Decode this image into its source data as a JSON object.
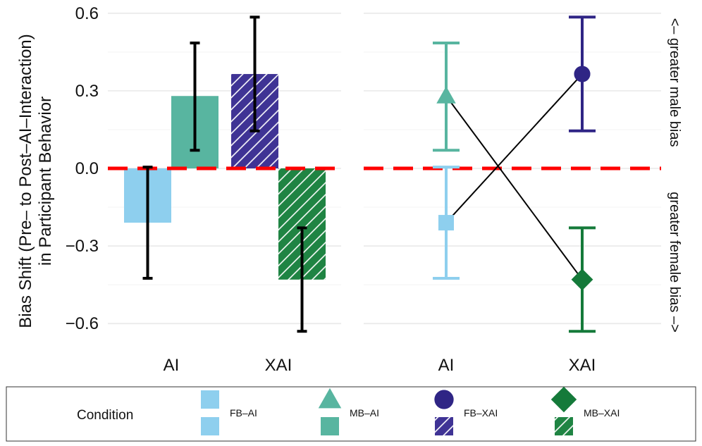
{
  "chart_data": [
    {
      "type": "bar",
      "panel": "left",
      "categories": [
        "AI",
        "XAI"
      ],
      "ylabel": [
        "Bias Shift (Pre– to Post–AI–Interaction)",
        "in Participant Behavior"
      ],
      "ylim": [
        -0.72,
        0.62
      ],
      "yticks": [
        0.6,
        0.3,
        0.0,
        -0.3,
        -0.6
      ],
      "ytick_labels": [
        "0.6",
        "0.3",
        "0.0",
        "−0.3",
        "−0.6"
      ],
      "reference_line": 0,
      "series": [
        {
          "name": "FB–AI",
          "category": "AI",
          "value": -0.21,
          "err_low": -0.425,
          "err_high": 0.005,
          "color": "#8ECFEE",
          "hatched": false
        },
        {
          "name": "MB–AI",
          "category": "AI",
          "value": 0.28,
          "err_low": 0.07,
          "err_high": 0.485,
          "color": "#58B5A0",
          "hatched": false
        },
        {
          "name": "FB–XAI",
          "category": "XAI",
          "value": 0.365,
          "err_low": 0.145,
          "err_high": 0.585,
          "color": "#3F3395",
          "hatched": true
        },
        {
          "name": "MB–XAI",
          "category": "XAI",
          "value": -0.43,
          "err_low": -0.63,
          "err_high": -0.23,
          "color": "#1F8443",
          "hatched": true
        }
      ]
    },
    {
      "type": "line",
      "panel": "right",
      "categories": [
        "AI",
        "XAI"
      ],
      "ylim": [
        -0.72,
        0.62
      ],
      "reference_line": 0,
      "series": [
        {
          "name": "FB–AI",
          "category": "AI",
          "value": -0.21,
          "err_low": -0.425,
          "err_high": 0.005,
          "color": "#8ECFEE",
          "marker": "square"
        },
        {
          "name": "MB–AI",
          "category": "AI",
          "value": 0.28,
          "err_low": 0.07,
          "err_high": 0.485,
          "color": "#58B5A0",
          "marker": "triangle"
        },
        {
          "name": "FB–XAI",
          "category": "XAI",
          "value": 0.365,
          "err_low": 0.145,
          "err_high": 0.585,
          "color": "#2F2585",
          "marker": "circle"
        },
        {
          "name": "MB–XAI",
          "category": "XAI",
          "value": -0.43,
          "err_low": -0.63,
          "err_high": -0.23,
          "color": "#157A3A",
          "marker": "diamond"
        }
      ],
      "connections": [
        [
          "FB–AI",
          "FB–XAI"
        ],
        [
          "MB–AI",
          "MB–XAI"
        ]
      ],
      "side_labels": {
        "top": "<– greater male bias",
        "bottom": "greater female bias –>"
      }
    }
  ],
  "legend": {
    "title": "Condition",
    "entries": [
      {
        "label": "FB–AI",
        "marker": "square",
        "color": "#8ECFEE",
        "hatched": false
      },
      {
        "label": "MB–AI",
        "marker": "triangle",
        "color": "#58B5A0",
        "hatched": false
      },
      {
        "label": "FB–XAI",
        "marker": "circle",
        "color": "#2F2585",
        "hatched": true
      },
      {
        "label": "MB–XAI",
        "marker": "diamond",
        "color": "#157A3A",
        "hatched": true
      }
    ]
  },
  "colors": {
    "reference_line": "#FF0000",
    "grid": "#EBEBEB",
    "error_bar": "#000000"
  }
}
